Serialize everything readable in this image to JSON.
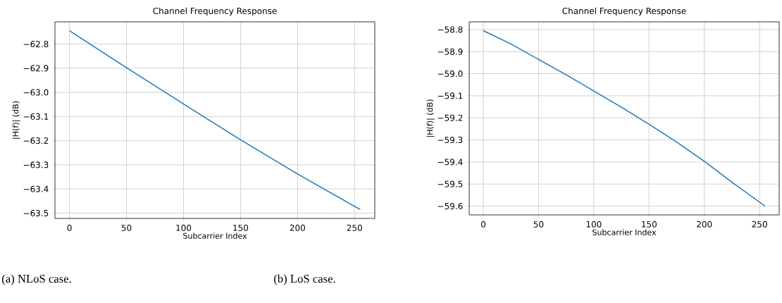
{
  "chart_data": [
    {
      "type": "line",
      "title": "Channel Frequency Response",
      "xlabel": "Subcarrier Index",
      "ylabel": "|H(f)| (dB)",
      "color": "#1f77b4",
      "grid": true,
      "line_style": "solid",
      "marker": "none",
      "x": [
        0,
        50,
        100,
        150,
        200,
        255
      ],
      "values": [
        -62.745,
        -62.898,
        -63.048,
        -63.196,
        -63.338,
        -63.485
      ],
      "xlim": [
        -12.75,
        267.75
      ],
      "ylim": [
        -63.522,
        -62.708
      ],
      "xticks": [
        0,
        50,
        100,
        150,
        200,
        250
      ],
      "yticks": [
        {
          "value": -62.8,
          "label": "−62.8"
        },
        {
          "value": -62.9,
          "label": "−62.9"
        },
        {
          "value": -63.0,
          "label": "−63.0"
        },
        {
          "value": -63.1,
          "label": "−63.1"
        },
        {
          "value": -63.2,
          "label": "−63.2"
        },
        {
          "value": -63.3,
          "label": "−63.3"
        },
        {
          "value": -63.4,
          "label": "−63.4"
        },
        {
          "value": -63.5,
          "label": "−63.5"
        }
      ],
      "annotations": [
        "(a) NLoS case."
      ]
    },
    {
      "type": "line",
      "title": "Channel Frequency Response",
      "xlabel": "Subcarrier Index",
      "ylabel": "|H(f)| (dB)",
      "color": "#1f77b4",
      "grid": true,
      "line_style": "solid",
      "marker": "none",
      "x": [
        0,
        25,
        50,
        75,
        100,
        125,
        150,
        175,
        200,
        225,
        255
      ],
      "values": [
        -58.805,
        -58.865,
        -58.935,
        -59.005,
        -59.078,
        -59.152,
        -59.229,
        -59.31,
        -59.397,
        -59.492,
        -59.6
      ],
      "xlim": [
        -12.75,
        267.75
      ],
      "ylim": [
        -59.64,
        -58.765
      ],
      "xticks": [
        0,
        50,
        100,
        150,
        200,
        250
      ],
      "yticks": [
        {
          "value": -58.8,
          "label": "−58.8"
        },
        {
          "value": -58.9,
          "label": "−58.9"
        },
        {
          "value": -59.0,
          "label": "−59.0"
        },
        {
          "value": -59.1,
          "label": "−59.1"
        },
        {
          "value": -59.2,
          "label": "−59.2"
        },
        {
          "value": -59.3,
          "label": "−59.3"
        },
        {
          "value": -59.4,
          "label": "−59.4"
        },
        {
          "value": -59.5,
          "label": "−59.5"
        },
        {
          "value": -59.6,
          "label": "−59.6"
        }
      ],
      "annotations": [
        "(b) LoS case."
      ]
    }
  ]
}
